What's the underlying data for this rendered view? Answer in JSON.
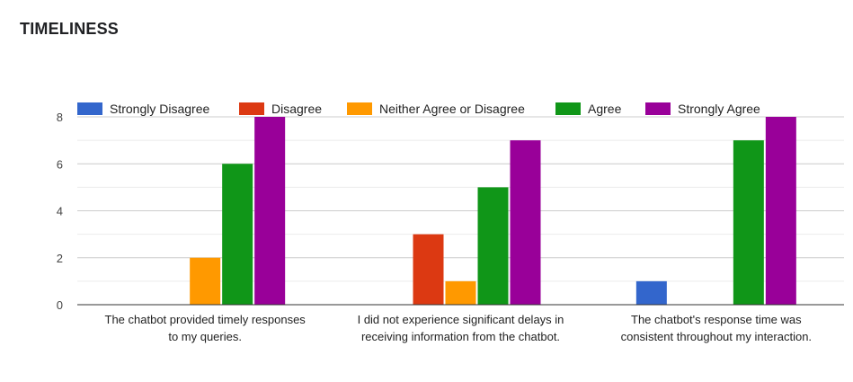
{
  "page": {
    "title": "TIMELINESS"
  },
  "chart_data": {
    "type": "bar",
    "title": "",
    "xlabel": "",
    "ylabel": "",
    "ylim": [
      0,
      8
    ],
    "yticks": [
      0,
      2,
      4,
      6,
      8
    ],
    "grid": true,
    "legend_position": "top",
    "categories": [
      [
        "The chatbot provided timely responses",
        "to my queries."
      ],
      [
        "I did not experience significant delays in",
        "receiving information from the chatbot."
      ],
      [
        "The chatbot's response time was",
        "consistent throughout my interaction."
      ]
    ],
    "series": [
      {
        "name": "Strongly Disagree",
        "color": "#3366cc",
        "values": [
          0,
          0,
          1
        ]
      },
      {
        "name": "Disagree",
        "color": "#dc3912",
        "values": [
          0,
          3,
          0
        ]
      },
      {
        "name": "Neither Agree or Disagree",
        "color": "#ff9900",
        "values": [
          2,
          1,
          0
        ]
      },
      {
        "name": "Agree",
        "color": "#109618",
        "values": [
          6,
          5,
          7
        ]
      },
      {
        "name": "Strongly Agree",
        "color": "#990099",
        "values": [
          8,
          7,
          8
        ]
      }
    ]
  }
}
